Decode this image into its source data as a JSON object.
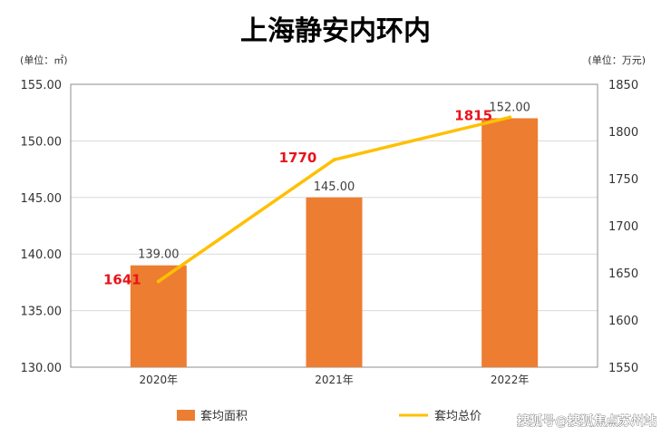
{
  "chart_data": {
    "type": "bar+line",
    "title": "上海静安内环内",
    "categories": [
      "2020年",
      "2021年",
      "2022年"
    ],
    "left_axis": {
      "unit": "(单位：㎡)",
      "ylim": [
        130,
        155
      ],
      "ticks": [
        "130.00",
        "135.00",
        "140.00",
        "145.00",
        "150.00",
        "155.00"
      ],
      "tick_values": [
        130,
        135,
        140,
        145,
        150,
        155
      ]
    },
    "right_axis": {
      "unit": "(单位：万元)",
      "ylim": [
        1550,
        1850
      ],
      "ticks": [
        "1550",
        "1600",
        "1650",
        "1700",
        "1750",
        "1800",
        "1850"
      ],
      "tick_values": [
        1550,
        1600,
        1650,
        1700,
        1750,
        1800,
        1850
      ]
    },
    "series": [
      {
        "name": "套均面积",
        "type": "bar",
        "axis": "left",
        "color": "#ed7d31",
        "values": [
          139,
          145,
          152
        ],
        "labels": [
          "139.00",
          "145.00",
          "152.00"
        ]
      },
      {
        "name": "套均总价",
        "type": "line",
        "axis": "right",
        "color": "#ffc000",
        "values": [
          1641,
          1770,
          1815
        ],
        "labels": [
          "1641",
          "1770",
          "1815"
        ]
      }
    ],
    "legend_position": "bottom",
    "grid": true
  },
  "watermark": "搜狐号@搜狐焦点苏州站"
}
